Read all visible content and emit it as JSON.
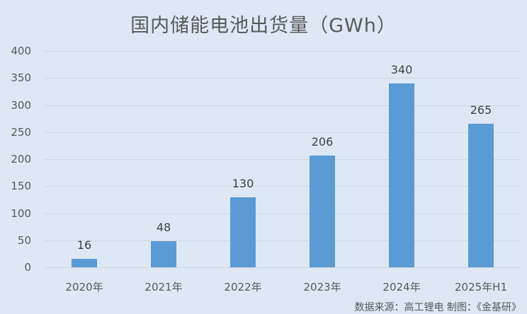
{
  "chart_data": {
    "type": "bar",
    "title": "国内储能电池出货量（GWh）",
    "categories": [
      "2020年",
      "2021年",
      "2022年",
      "2023年",
      "2024年",
      "2025年H1"
    ],
    "values": [
      16,
      48,
      130,
      206,
      340,
      265
    ],
    "xlabel": "",
    "ylabel": "",
    "ylim": [
      0,
      400
    ],
    "yticks": [
      0,
      50,
      100,
      150,
      200,
      250,
      300,
      350,
      400
    ],
    "grid": true,
    "legend": null,
    "bar_color": "#5b9bd5",
    "data_labels": true
  },
  "source_note": "数据来源：高工锂电  制图：《金基研》"
}
